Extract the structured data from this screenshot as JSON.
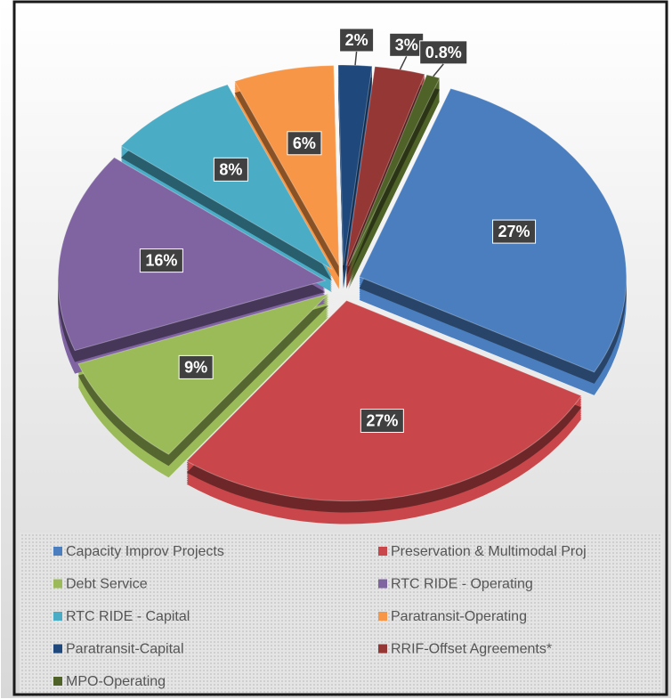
{
  "chart_data": {
    "type": "pie",
    "categories": [
      "Capacity Improv Projects",
      "Preservation & Multimodal Proj",
      "Debt Service",
      "RTC RIDE - Operating",
      "RTC RIDE - Capital",
      "Paratransit-Operating",
      "Paratransit-Capital",
      "RRIF-Offset Agreements*",
      "MPO-Operating"
    ],
    "values": [
      27,
      27,
      9,
      16,
      8,
      6,
      2,
      3,
      0.8
    ],
    "value_labels": [
      "27%",
      "27%",
      "9%",
      "16%",
      "8%",
      "6%",
      "2%",
      "3%",
      "0.8%"
    ],
    "colors": [
      "#4a7ebf",
      "#c9474a",
      "#9bbb59",
      "#8064a2",
      "#4bacc6",
      "#f79646",
      "#1f497d",
      "#953735",
      "#4f6228"
    ],
    "legend": "bottom"
  }
}
